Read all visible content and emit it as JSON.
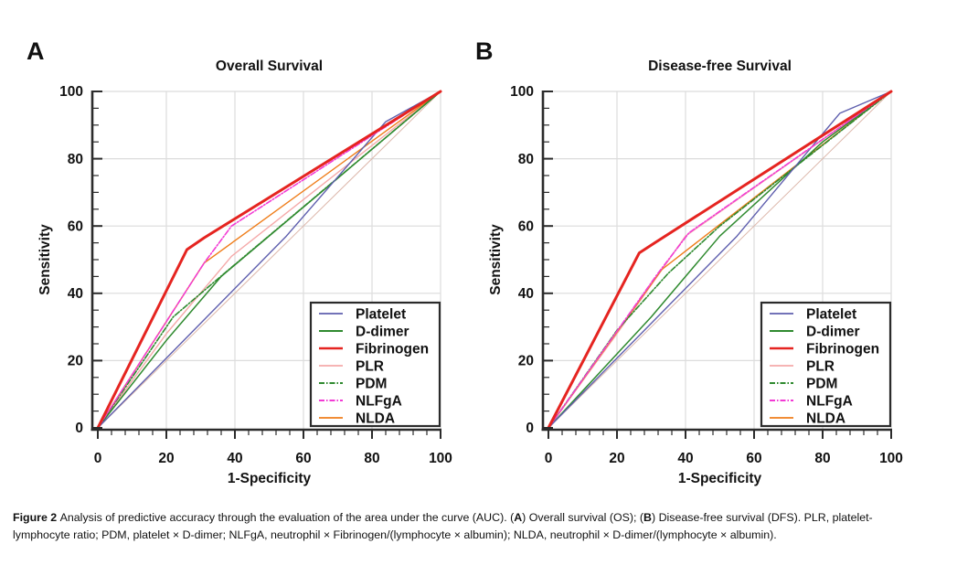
{
  "caption": {
    "lines": [
      {
        "segments": [
          {
            "text": "Figure 2 "
          },
          {
            "text": "Analysis of predictive accuracy through the evaluation of the area under the curve (AUC). ("
          },
          {
            "text": "A"
          },
          {
            "text": ") Overall survival (OS); ("
          },
          {
            "text": "B"
          },
          {
            "text": ") Disease-free survival (DFS). PLR, platelet-"
          }
        ]
      },
      {
        "segments": [
          {
            "text": "lymphocyte ratio; PDM, platelet × D-dimer; NLFgA, neutrophil × Fibrinogen/(lymphocyte × albumin); NLDA, neutrophil × D-dimer/(lymphocyte × albumin)."
          }
        ]
      }
    ]
  },
  "chart_data": [
    {
      "type": "line",
      "panel_letter": "A",
      "title": "Overall Survival",
      "xlabel": "1-Specificity",
      "ylabel": "Sensitivity",
      "xlim": [
        0,
        100
      ],
      "ylim": [
        0,
        100
      ],
      "xticks": [
        "0",
        "20",
        "40",
        "60",
        "80",
        "100"
      ],
      "yticks": [
        "0",
        "20",
        "40",
        "60",
        "80",
        "100"
      ],
      "grid": true,
      "legend_position": "lower right",
      "series": [
        {
          "name": "Platelet",
          "color": "#5f5fae",
          "dash": "",
          "width": 1.4,
          "z": 5,
          "points": [
            [
              0,
              0
            ],
            [
              55,
              57
            ],
            [
              84,
              91
            ],
            [
              100,
              100
            ]
          ]
        },
        {
          "name": "D-dimer",
          "color": "#2f8a2f",
          "dash": "",
          "width": 1.5,
          "z": 3,
          "points": [
            [
              0,
              0
            ],
            [
              20,
              26
            ],
            [
              36,
              45
            ],
            [
              100,
              100
            ]
          ]
        },
        {
          "name": "Fibrinogen",
          "color": "#e52420",
          "dash": "",
          "width": 3,
          "z": 7,
          "points": [
            [
              0,
              0
            ],
            [
              26,
              53
            ],
            [
              31,
              56.5
            ],
            [
              100,
              100
            ]
          ]
        },
        {
          "name": "PLR",
          "color": "#f5a9a9",
          "dash": "",
          "width": 1.4,
          "z": 1,
          "points": [
            [
              0,
              0
            ],
            [
              20,
              28
            ],
            [
              39,
              51
            ],
            [
              100,
              100
            ]
          ]
        },
        {
          "name": "PDM",
          "color": "#2f8a2f",
          "dash": "6,2,1.5,2",
          "width": 1.6,
          "z": 4,
          "points": [
            [
              0,
              0
            ],
            [
              22,
              33
            ],
            [
              37,
              46
            ],
            [
              100,
              100
            ]
          ]
        },
        {
          "name": "NLFgA",
          "color": "#f23bd4",
          "dash": "6,2,1.5,2",
          "width": 1.6,
          "z": 6,
          "points": [
            [
              0,
              0
            ],
            [
              31,
              49
            ],
            [
              39,
              60
            ],
            [
              100,
              100
            ]
          ]
        },
        {
          "name": "NLDA",
          "color": "#ef7d1a",
          "dash": "",
          "width": 1.4,
          "z": 2,
          "points": [
            [
              0,
              0
            ],
            [
              31,
              49
            ],
            [
              100,
              100
            ]
          ]
        },
        {
          "name": "reference",
          "color": "#ddb8ac",
          "dash": "",
          "width": 1,
          "z": 0,
          "legend": false,
          "points": [
            [
              0,
              0
            ],
            [
              100,
              100
            ]
          ]
        }
      ]
    },
    {
      "type": "line",
      "panel_letter": "B",
      "title": "Disease-free Survival",
      "xlabel": "1-Specificity",
      "ylabel": "Sensitivity",
      "xlim": [
        0,
        100
      ],
      "ylim": [
        0,
        100
      ],
      "xticks": [
        "0",
        "20",
        "40",
        "60",
        "80",
        "100"
      ],
      "yticks": [
        "0",
        "20",
        "40",
        "60",
        "80",
        "100"
      ],
      "grid": true,
      "legend_position": "lower right",
      "series": [
        {
          "name": "Platelet",
          "color": "#5f5fae",
          "dash": "",
          "width": 1.4,
          "z": 5,
          "points": [
            [
              0,
              0
            ],
            [
              55,
              57
            ],
            [
              85,
              93.5
            ],
            [
              100,
              100
            ]
          ]
        },
        {
          "name": "D-dimer",
          "color": "#2f8a2f",
          "dash": "",
          "width": 1.5,
          "z": 3,
          "points": [
            [
              0,
              0
            ],
            [
              30,
              33
            ],
            [
              50,
              57
            ],
            [
              80,
              85
            ],
            [
              100,
              100
            ]
          ]
        },
        {
          "name": "Fibrinogen",
          "color": "#e52420",
          "dash": "",
          "width": 3,
          "z": 7,
          "points": [
            [
              0,
              0
            ],
            [
              26.5,
              52
            ],
            [
              31,
              55
            ],
            [
              100,
              100
            ]
          ]
        },
        {
          "name": "PLR",
          "color": "#f5a9a9",
          "dash": "",
          "width": 1.4,
          "z": 1,
          "points": [
            [
              0,
              0
            ],
            [
              20,
              28
            ],
            [
              40,
              57
            ],
            [
              100,
              100
            ]
          ]
        },
        {
          "name": "PDM",
          "color": "#2f8a2f",
          "dash": "6,2,1.5,2",
          "width": 1.6,
          "z": 4,
          "points": [
            [
              0,
              0
            ],
            [
              20,
              29
            ],
            [
              35,
              46
            ],
            [
              50,
              60
            ],
            [
              100,
              100
            ]
          ]
        },
        {
          "name": "NLFgA",
          "color": "#f23bd4",
          "dash": "6,2,1.5,2",
          "width": 1.6,
          "z": 6,
          "points": [
            [
              0,
              0
            ],
            [
              32,
              46
            ],
            [
              41,
              58
            ],
            [
              100,
              100
            ]
          ]
        },
        {
          "name": "NLDA",
          "color": "#ef7d1a",
          "dash": "",
          "width": 1.4,
          "z": 2,
          "points": [
            [
              0,
              0
            ],
            [
              33,
              47
            ],
            [
              100,
              100
            ]
          ]
        },
        {
          "name": "reference",
          "color": "#ddb8ac",
          "dash": "",
          "width": 1,
          "z": 0,
          "legend": false,
          "points": [
            [
              0,
              0
            ],
            [
              100,
              100
            ]
          ]
        }
      ]
    }
  ],
  "style": {
    "axis_color": "#2b2b2b",
    "grid_color": "#dcdcdc",
    "text_color": "#111111",
    "legend_border_color": "#2b2b2b"
  }
}
